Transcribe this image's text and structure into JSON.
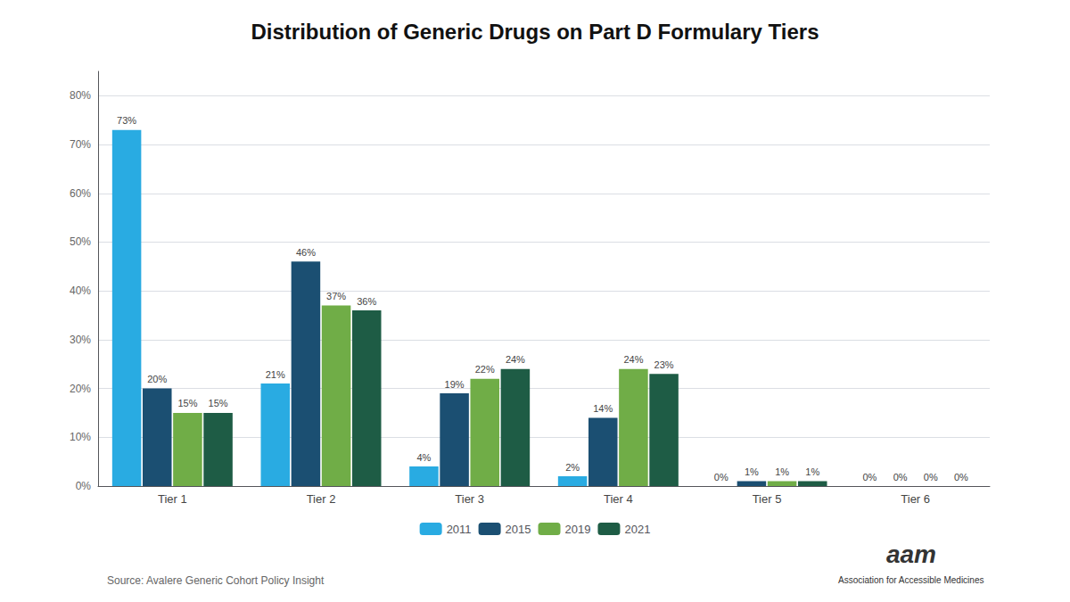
{
  "chart_data": {
    "type": "bar",
    "title": "Distribution of Generic Drugs on Part D Formulary Tiers",
    "categories": [
      "Tier 1",
      "Tier 2",
      "Tier 3",
      "Tier 4",
      "Tier 5",
      "Tier 6"
    ],
    "series": [
      {
        "name": "2011",
        "color": "#29ABE2",
        "values": [
          73,
          21,
          4,
          2,
          0,
          0
        ],
        "value_labels": [
          "73%",
          "21%",
          "4%",
          "2%",
          "0%",
          "0%"
        ]
      },
      {
        "name": "2015",
        "color": "#1B4F72",
        "values": [
          20,
          46,
          19,
          14,
          1,
          0
        ],
        "value_labels": [
          "20%",
          "46%",
          "19%",
          "14%",
          "1%",
          "0%"
        ]
      },
      {
        "name": "2019",
        "color": "#70AD47",
        "values": [
          15,
          37,
          22,
          24,
          1,
          0
        ],
        "value_labels": [
          "15%",
          "37%",
          "22%",
          "24%",
          "1%",
          "0%"
        ]
      },
      {
        "name": "2021",
        "color": "#1E5C45",
        "values": [
          15,
          36,
          24,
          23,
          1,
          0
        ],
        "value_labels": [
          "15%",
          "36%",
          "24%",
          "23%",
          "1%",
          "0%"
        ]
      }
    ],
    "ylim": [
      0,
      85
    ],
    "yticks": [
      {
        "value": 0,
        "label": "0%"
      },
      {
        "value": 10,
        "label": "10%"
      },
      {
        "value": 20,
        "label": "20%"
      },
      {
        "value": 30,
        "label": "30%"
      },
      {
        "value": 40,
        "label": "40%"
      },
      {
        "value": 50,
        "label": "50%"
      },
      {
        "value": 60,
        "label": "60%"
      },
      {
        "value": 70,
        "label": "70%"
      },
      {
        "value": 80,
        "label": "80%"
      }
    ],
    "annotations": [
      "Source: Avalere Generic Cohort Policy Insight",
      "aam",
      "Association for Accessible Medicines"
    ],
    "grid": true,
    "legend": "bottom",
    "data_labels": true
  }
}
